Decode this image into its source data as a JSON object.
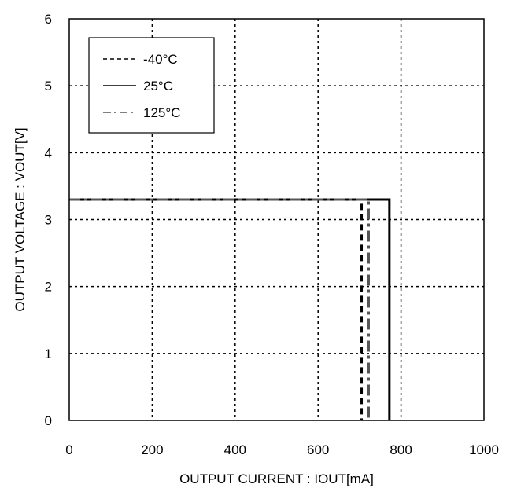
{
  "chart_data": {
    "type": "line",
    "xlabel": "OUTPUT CURRENT : IOUT[mA]",
    "ylabel": "OUTPUT VOLTAGE : VOUT[V]",
    "xlim": [
      0,
      1000
    ],
    "ylim": [
      0,
      6
    ],
    "x_ticks": [
      0,
      200,
      400,
      600,
      800,
      1000
    ],
    "y_ticks": [
      0,
      1,
      2,
      3,
      4,
      5,
      6
    ],
    "grid": true,
    "grid_style": "dotted",
    "legend_position": "top-left",
    "series": [
      {
        "name": "-40°C",
        "line_style": "dashed",
        "color": "#000000",
        "points": [
          [
            0,
            3.3
          ],
          [
            705,
            3.3
          ],
          [
            705,
            0
          ]
        ]
      },
      {
        "name": "25°C",
        "line_style": "solid",
        "color": "#000000",
        "points": [
          [
            0,
            3.3
          ],
          [
            772,
            3.3
          ],
          [
            772,
            0
          ]
        ]
      },
      {
        "name": "125°C",
        "line_style": "dash-dot",
        "color": "#555555",
        "points": [
          [
            0,
            3.3
          ],
          [
            722,
            3.3
          ],
          [
            722,
            0
          ]
        ]
      }
    ]
  }
}
